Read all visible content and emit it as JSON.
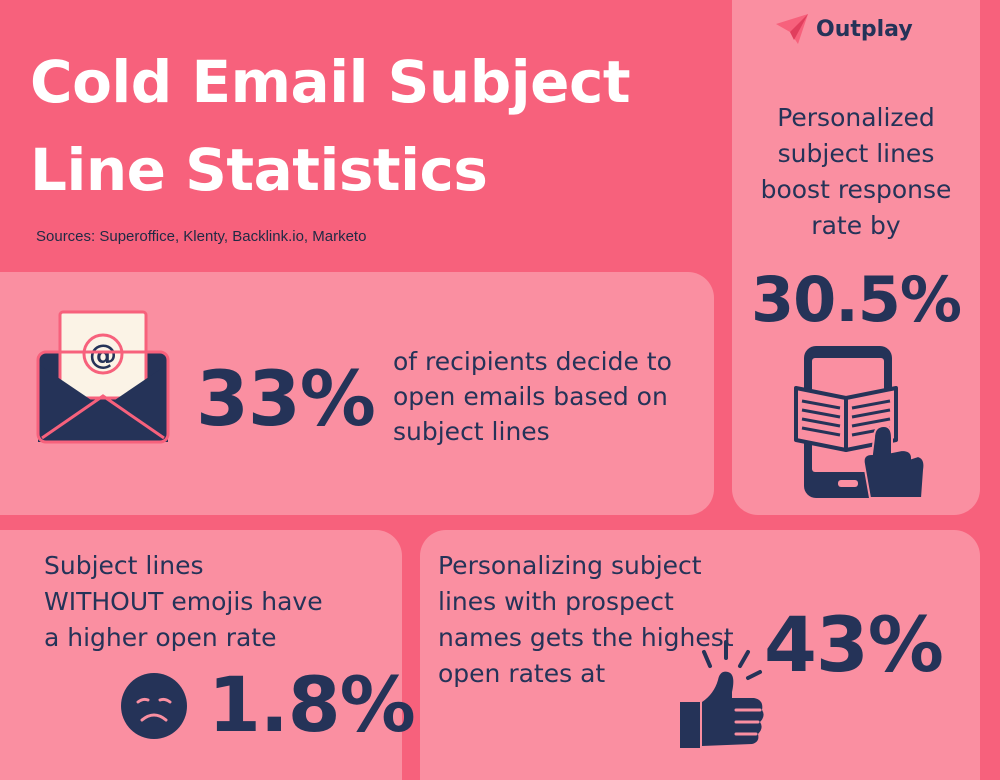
{
  "title": {
    "line1": "Cold Email Subject",
    "line2": "Line Statistics"
  },
  "sources": "Sources: Superoffice, Klenty, Backlink.io, Marketo",
  "brand": {
    "name": "Outplay",
    "icon": "paper-plane-icon"
  },
  "stat_open_decision": {
    "value": "33%",
    "line1": "of recipients decide to",
    "line2": "open emails based on",
    "line3": "subject lines",
    "icon": "email-envelope-icon",
    "icon_glyph": "@"
  },
  "stat_personalized_response": {
    "line1": "Personalized",
    "line2": "subject lines",
    "line3": "boost response",
    "line4": "rate by",
    "value": "30.5%",
    "icon": "phone-book-tap-icon"
  },
  "stat_no_emoji": {
    "line1": "Subject lines",
    "line2": "WITHOUT emojis have",
    "line3": "a higher open rate",
    "value": "1.8%",
    "icon": "sad-face-icon"
  },
  "stat_prospect_names": {
    "line1": "Personalizing subject",
    "line2": "lines with prospect",
    "line3": "names gets the highest",
    "line4": "open rates at",
    "value": "43%",
    "icon": "thumbs-up-icon"
  },
  "colors": {
    "background": "#f7617c",
    "panel": "#fa8fa1",
    "navy": "#253358",
    "cream": "#fbf3e6",
    "title": "#ffffff"
  }
}
